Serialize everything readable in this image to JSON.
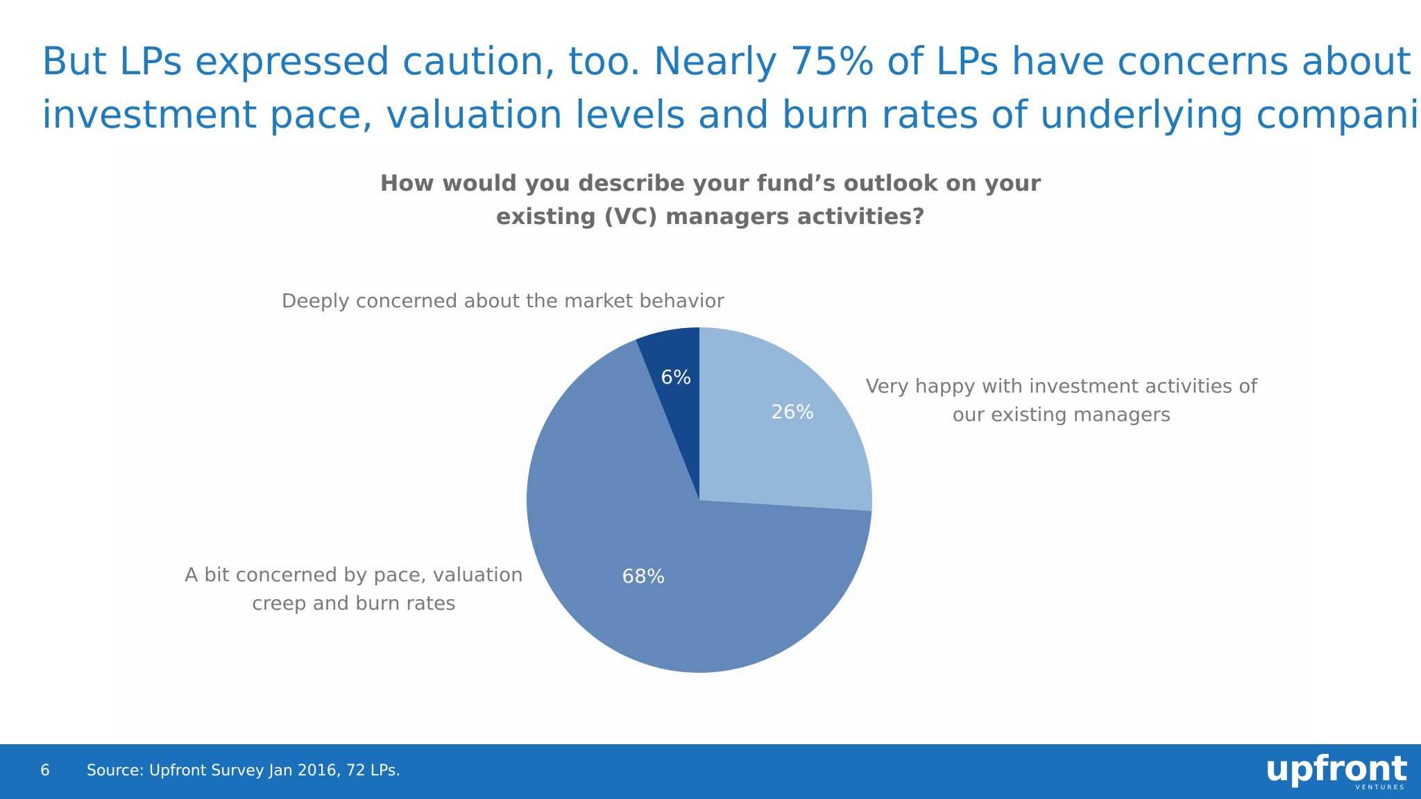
{
  "slide": {
    "headline_lines": [
      "But LPs expressed caution, too. Nearly 75% of LPs have concerns about",
      "investment pace, valuation levels and burn rates of underlying companies"
    ],
    "page_number": "6",
    "source_note": "Source: Upfront Survey Jan 2016, 72 LPs.",
    "logo": {
      "word": "upfront",
      "subtitle": "VENTURES"
    }
  },
  "chart_data": {
    "type": "pie",
    "title_lines": [
      "How would you describe your fund’s outlook on your",
      "existing (VC) managers activities?"
    ],
    "slices": [
      {
        "category_lines": [
          "Very happy with investment activities of",
          "our existing managers"
        ],
        "value": 26,
        "label": "26%",
        "color": "#95b7d9"
      },
      {
        "category_lines": [
          "A bit concerned by pace, valuation",
          "creep and burn rates"
        ],
        "value": 68,
        "label": "68%",
        "color": "#6388ba"
      },
      {
        "category_lines": [
          "Deeply concerned about the market behavior"
        ],
        "value": 6,
        "label": "6%",
        "color": "#15498d"
      }
    ],
    "start": "12 o'clock",
    "direction": "clockwise"
  },
  "theme": {
    "headline_color": "#1f7bbf",
    "footer_color": "#1a70ba",
    "category_label_color": "#7a7a7a",
    "value_label_color": "#ffffff"
  }
}
